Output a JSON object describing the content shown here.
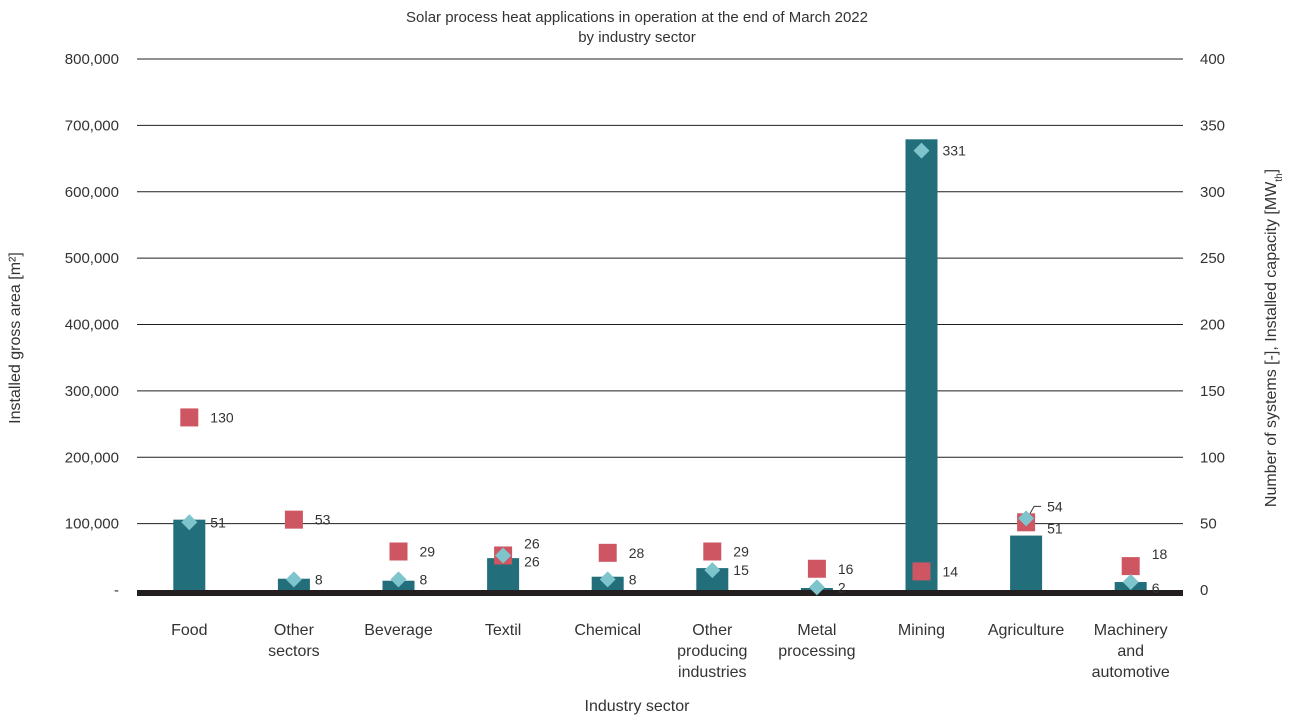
{
  "chart_data": {
    "type": "bar",
    "title_lines": [
      "Solar process heat applications in operation at the end of March 2022",
      "by industry sector"
    ],
    "xlabel": "Industry sector",
    "ylabel": "Installed gross area [m²]",
    "y2label": "Number of systems [-], Installed capacity [MW",
    "y2label_sub": "th",
    "y2label_end": "]",
    "ylim": [
      0,
      800000
    ],
    "y2lim": [
      0,
      400
    ],
    "yticks": [
      "-",
      "100,000",
      "200,000",
      "300,000",
      "400,000",
      "500,000",
      "600,000",
      "700,000",
      "800,000"
    ],
    "y2ticks": [
      "0",
      "50",
      "100",
      "150",
      "200",
      "250",
      "300",
      "350",
      "400"
    ],
    "grid": true,
    "categories": [
      [
        "Food"
      ],
      [
        "Other",
        "sectors"
      ],
      [
        "Beverage"
      ],
      [
        "Textil"
      ],
      [
        "Chemical"
      ],
      [
        "Other",
        "producing",
        "industries"
      ],
      [
        "Metal",
        "processing"
      ],
      [
        "Mining"
      ],
      [
        "Agriculture"
      ],
      [
        "Machinery",
        "and",
        "automotive"
      ]
    ],
    "series": [
      {
        "type": "bar",
        "axis": "left",
        "color": "#236e7b",
        "values": [
          106000,
          17000,
          14000,
          48000,
          20000,
          33000,
          3000,
          679000,
          82000,
          12000
        ]
      },
      {
        "type": "marker-square",
        "axis": "right",
        "color": "#cd5662",
        "values": [
          130,
          53,
          29,
          26,
          28,
          29,
          16,
          14,
          51,
          18
        ],
        "labels": [
          "130",
          "53",
          "29",
          "26",
          "28",
          "29",
          "16",
          "14",
          "51",
          "18"
        ]
      },
      {
        "type": "marker-diamond",
        "axis": "right",
        "color": "#7ec4cc",
        "values": [
          51,
          8,
          8,
          26,
          8,
          15,
          2,
          331,
          54,
          6
        ],
        "labels": [
          "51",
          "8",
          "8",
          "26",
          "8",
          "15",
          "2",
          "331",
          "54",
          "6"
        ]
      }
    ]
  }
}
